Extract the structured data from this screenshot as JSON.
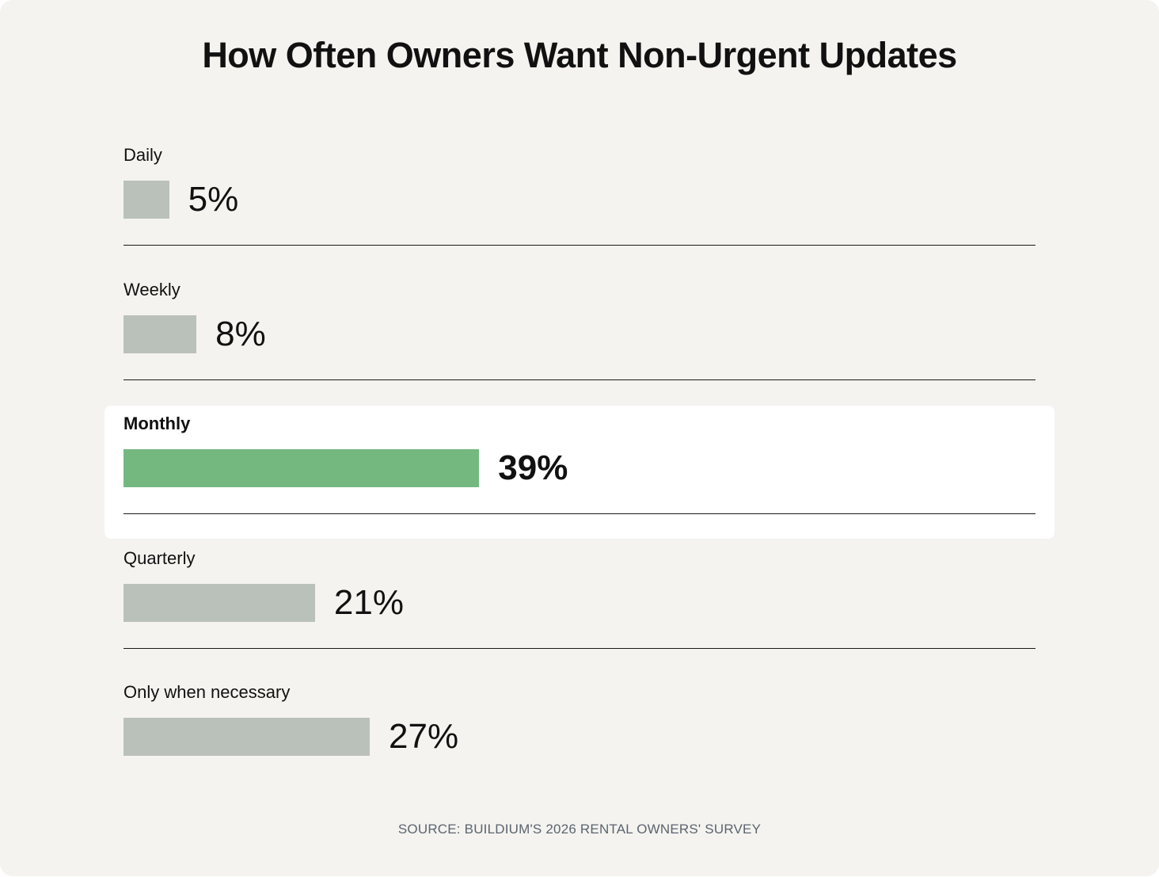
{
  "chart_data": {
    "type": "bar",
    "orientation": "horizontal",
    "title": "How Often Owners Want Non-Urgent Updates",
    "categories": [
      "Daily",
      "Weekly",
      "Monthly",
      "Quarterly",
      "Only when necessary"
    ],
    "values": [
      5,
      8,
      39,
      21,
      27
    ],
    "value_labels": [
      "5%",
      "8%",
      "39%",
      "21%",
      "27%"
    ],
    "unit": "%",
    "highlighted_category": "Monthly",
    "xlim": [
      0,
      100
    ],
    "grid": false,
    "legend": "none",
    "source": "SOURCE: BUILDIUM'S 2026 RENTAL OWNERS' SURVEY"
  },
  "colors": {
    "background": "#f4f3ef",
    "bar_default": "#bac1ba",
    "bar_highlight": "#74b880",
    "highlight_panel": "#ffffff",
    "text": "#111111",
    "source_text": "#5c6470"
  }
}
